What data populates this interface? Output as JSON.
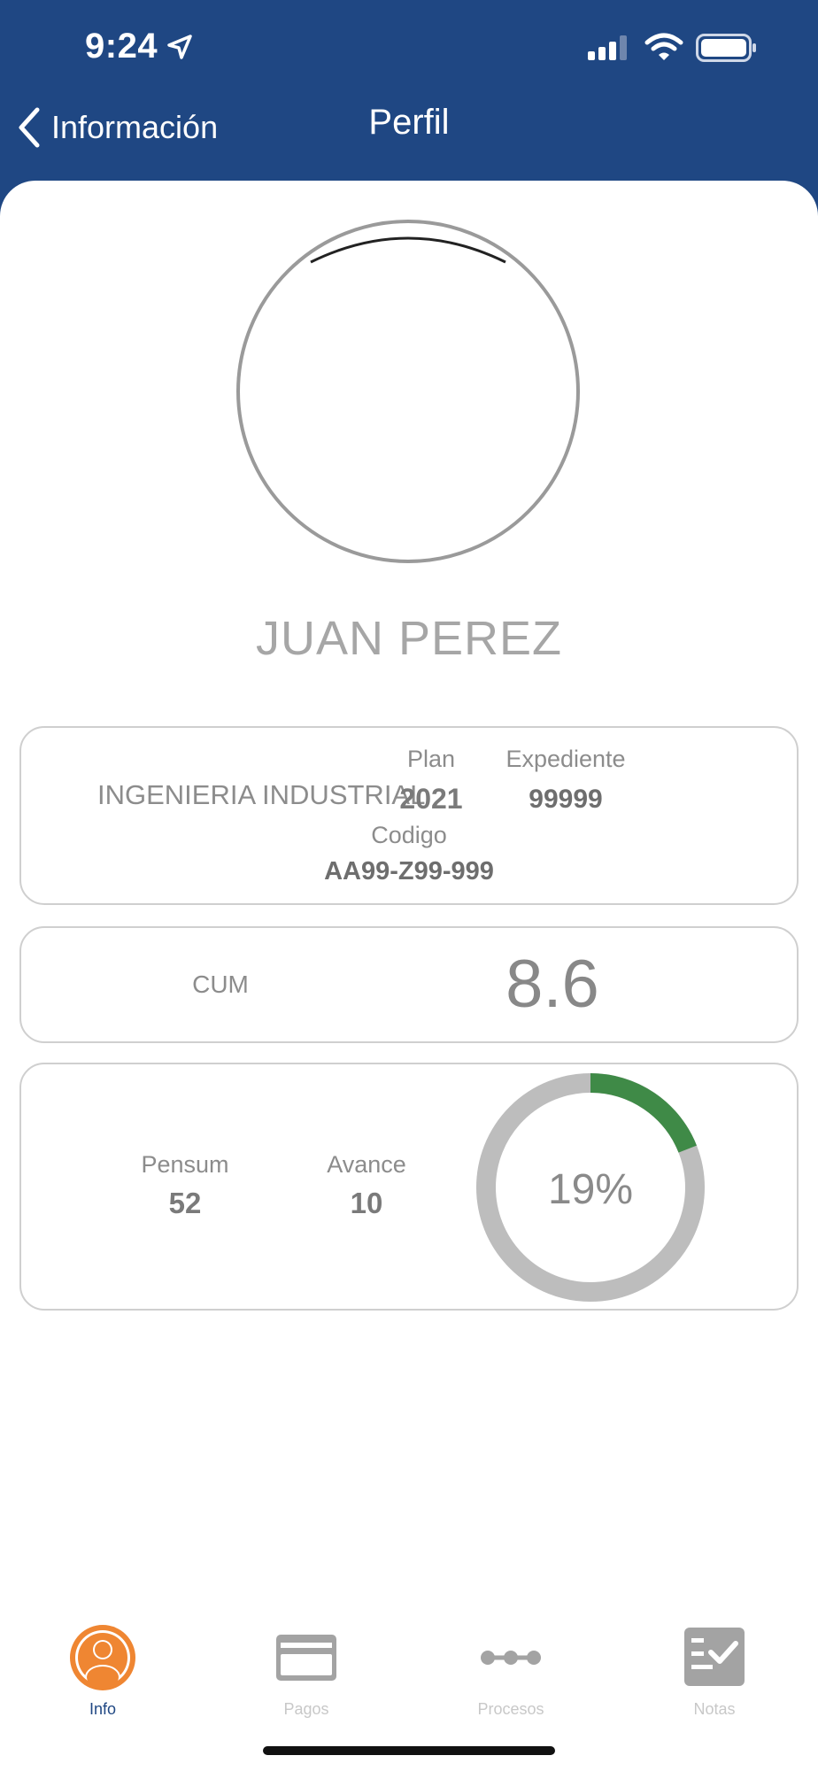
{
  "status_bar": {
    "time": "9:24",
    "icons": [
      "location-arrow-icon",
      "signal-icon",
      "wifi-icon",
      "battery-icon"
    ]
  },
  "nav": {
    "back_label": "Información",
    "title": "Perfil"
  },
  "profile": {
    "name": "JUAN PEREZ"
  },
  "academic": {
    "career": "INGENIERIA INDUSTRIAL",
    "plan_label": "Plan",
    "plan_value": "2021",
    "expediente_label": "Expediente",
    "expediente_value": "99999",
    "codigo_label": "Codigo",
    "codigo_value": "AA99-Z99-999"
  },
  "cum": {
    "label": "CUM",
    "value": "8.6"
  },
  "progress": {
    "pensum_label": "Pensum",
    "pensum_value": "52",
    "avance_label": "Avance",
    "avance_value": "10",
    "percent_label": "19%",
    "percent": 19
  },
  "tabbar": {
    "tabs": [
      {
        "label": "Info",
        "icon": "user-icon",
        "active": true
      },
      {
        "label": "Pagos",
        "icon": "card-icon",
        "active": false
      },
      {
        "label": "Procesos",
        "icon": "process-icon",
        "active": false
      },
      {
        "label": "Notas",
        "icon": "checklist-icon",
        "active": false
      }
    ]
  },
  "colors": {
    "header": "#1f4783",
    "accent_orange": "#ef8632",
    "progress_green": "#3f8a47",
    "progress_track": "#bdbdbd"
  }
}
